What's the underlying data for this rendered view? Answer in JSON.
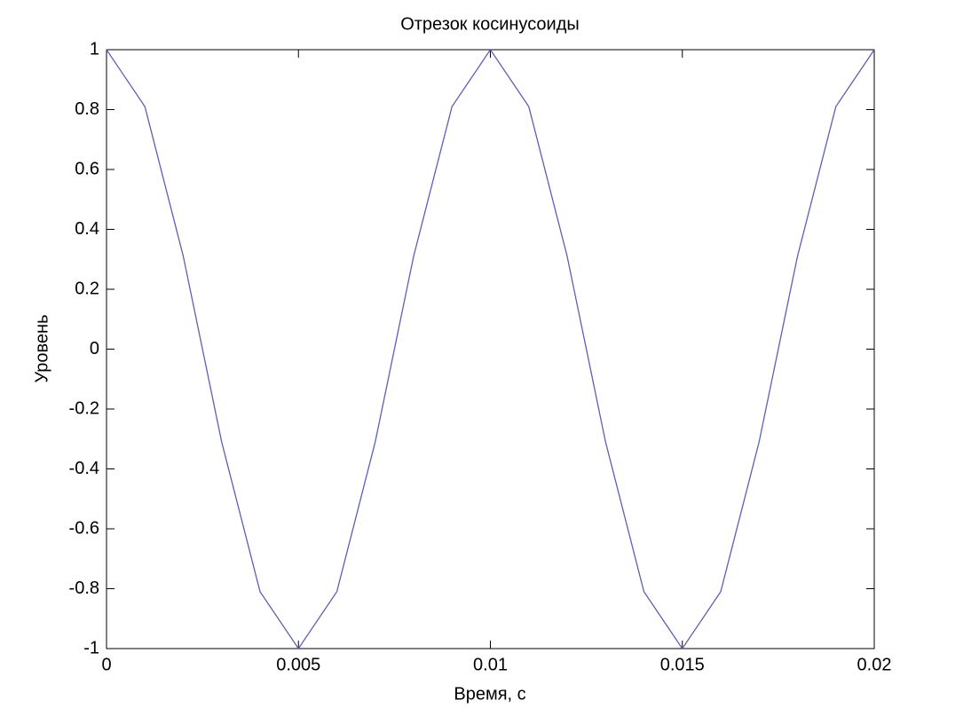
{
  "chart_data": {
    "type": "line",
    "title": "Отрезок косинусоиды",
    "x_label": "Время, с",
    "y_label": "Уровень",
    "x": [
      0,
      0.001,
      0.002,
      0.003,
      0.004,
      0.005,
      0.006,
      0.007,
      0.008,
      0.009,
      0.01,
      0.011,
      0.012,
      0.013,
      0.014,
      0.015,
      0.016,
      0.017,
      0.018,
      0.019,
      0.02
    ],
    "series": [
      {
        "color": "#5f5fb0",
        "values": [
          1,
          0.81,
          0.31,
          -0.31,
          -0.81,
          -1,
          -0.81,
          -0.31,
          0.31,
          0.81,
          1,
          0.81,
          0.31,
          -0.31,
          -0.81,
          -1,
          -0.81,
          -0.31,
          0.31,
          0.81,
          1
        ]
      }
    ],
    "xlim": [
      0,
      0.02
    ],
    "xticks": [
      0,
      0.005,
      0.01,
      0.015,
      0.02
    ],
    "ylim": [
      -1,
      1
    ],
    "yticks": [
      -1,
      -0.8,
      -0.6,
      -0.4,
      -0.2,
      0,
      0.2,
      0.4,
      0.6,
      0.8,
      1
    ],
    "grid": false
  }
}
